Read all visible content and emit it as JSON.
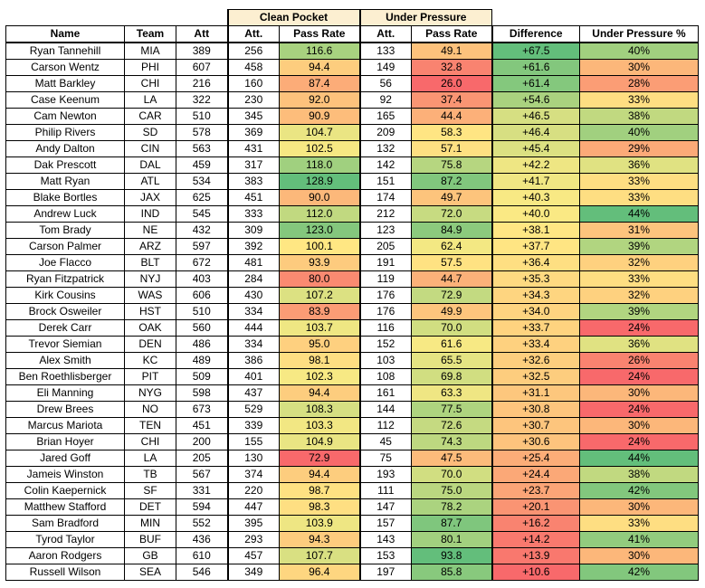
{
  "group_headers": {
    "clean_pocket": "Clean Pocket",
    "under_pressure": "Under Pressure"
  },
  "columns": [
    "Name",
    "Team",
    "Att",
    "Att.",
    "Pass Rate",
    "Att.",
    "Pass Rate",
    "Difference",
    "Under Pressure %"
  ],
  "rows": [
    [
      "Ryan Tannehill",
      "MIA",
      "389",
      "256",
      "116.6",
      "133",
      "49.1",
      "+67.5",
      "40%"
    ],
    [
      "Carson Wentz",
      "PHI",
      "607",
      "458",
      "94.4",
      "149",
      "32.8",
      "+61.6",
      "30%"
    ],
    [
      "Matt Barkley",
      "CHI",
      "216",
      "160",
      "87.4",
      "56",
      "26.0",
      "+61.4",
      "28%"
    ],
    [
      "Case Keenum",
      "LA",
      "322",
      "230",
      "92.0",
      "92",
      "37.4",
      "+54.6",
      "33%"
    ],
    [
      "Cam Newton",
      "CAR",
      "510",
      "345",
      "90.9",
      "165",
      "44.4",
      "+46.5",
      "38%"
    ],
    [
      "Philip Rivers",
      "SD",
      "578",
      "369",
      "104.7",
      "209",
      "58.3",
      "+46.4",
      "40%"
    ],
    [
      "Andy Dalton",
      "CIN",
      "563",
      "431",
      "102.5",
      "132",
      "57.1",
      "+45.4",
      "29%"
    ],
    [
      "Dak Prescott",
      "DAL",
      "459",
      "317",
      "118.0",
      "142",
      "75.8",
      "+42.2",
      "36%"
    ],
    [
      "Matt Ryan",
      "ATL",
      "534",
      "383",
      "128.9",
      "151",
      "87.2",
      "+41.7",
      "33%"
    ],
    [
      "Blake Bortles",
      "JAX",
      "625",
      "451",
      "90.0",
      "174",
      "49.7",
      "+40.3",
      "33%"
    ],
    [
      "Andrew Luck",
      "IND",
      "545",
      "333",
      "112.0",
      "212",
      "72.0",
      "+40.0",
      "44%"
    ],
    [
      "Tom Brady",
      "NE",
      "432",
      "309",
      "123.0",
      "123",
      "84.9",
      "+38.1",
      "31%"
    ],
    [
      "Carson Palmer",
      "ARZ",
      "597",
      "392",
      "100.1",
      "205",
      "62.4",
      "+37.7",
      "39%"
    ],
    [
      "Joe Flacco",
      "BLT",
      "672",
      "481",
      "93.9",
      "191",
      "57.5",
      "+36.4",
      "32%"
    ],
    [
      "Ryan Fitzpatrick",
      "NYJ",
      "403",
      "284",
      "80.0",
      "119",
      "44.7",
      "+35.3",
      "33%"
    ],
    [
      "Kirk Cousins",
      "WAS",
      "606",
      "430",
      "107.2",
      "176",
      "72.9",
      "+34.3",
      "32%"
    ],
    [
      "Brock Osweiler",
      "HST",
      "510",
      "334",
      "83.9",
      "176",
      "49.9",
      "+34.0",
      "39%"
    ],
    [
      "Derek Carr",
      "OAK",
      "560",
      "444",
      "103.7",
      "116",
      "70.0",
      "+33.7",
      "24%"
    ],
    [
      "Trevor Siemian",
      "DEN",
      "486",
      "334",
      "95.0",
      "152",
      "61.6",
      "+33.4",
      "36%"
    ],
    [
      "Alex Smith",
      "KC",
      "489",
      "386",
      "98.1",
      "103",
      "65.5",
      "+32.6",
      "26%"
    ],
    [
      "Ben Roethlisberger",
      "PIT",
      "509",
      "401",
      "102.3",
      "108",
      "69.8",
      "+32.5",
      "24%"
    ],
    [
      "Eli Manning",
      "NYG",
      "598",
      "437",
      "94.4",
      "161",
      "63.3",
      "+31.1",
      "30%"
    ],
    [
      "Drew Brees",
      "NO",
      "673",
      "529",
      "108.3",
      "144",
      "77.5",
      "+30.8",
      "24%"
    ],
    [
      "Marcus Mariota",
      "TEN",
      "451",
      "339",
      "103.3",
      "112",
      "72.6",
      "+30.7",
      "30%"
    ],
    [
      "Brian Hoyer",
      "CHI",
      "200",
      "155",
      "104.9",
      "45",
      "74.3",
      "+30.6",
      "24%"
    ],
    [
      "Jared Goff",
      "LA",
      "205",
      "130",
      "72.9",
      "75",
      "47.5",
      "+25.4",
      "44%"
    ],
    [
      "Jameis Winston",
      "TB",
      "567",
      "374",
      "94.4",
      "193",
      "70.0",
      "+24.4",
      "38%"
    ],
    [
      "Colin Kaepernick",
      "SF",
      "331",
      "220",
      "98.7",
      "111",
      "75.0",
      "+23.7",
      "42%"
    ],
    [
      "Matthew Stafford",
      "DET",
      "594",
      "447",
      "98.3",
      "147",
      "78.2",
      "+20.1",
      "30%"
    ],
    [
      "Sam Bradford",
      "MIN",
      "552",
      "395",
      "103.9",
      "157",
      "87.7",
      "+16.2",
      "33%"
    ],
    [
      "Tyrod Taylor",
      "BUF",
      "436",
      "293",
      "94.3",
      "143",
      "80.1",
      "+14.2",
      "41%"
    ],
    [
      "Aaron Rodgers",
      "GB",
      "610",
      "457",
      "107.7",
      "153",
      "93.8",
      "+13.9",
      "30%"
    ],
    [
      "Russell Wilson",
      "SEA",
      "546",
      "349",
      "96.4",
      "197",
      "85.8",
      "+10.6",
      "42%"
    ]
  ],
  "heat_colors": {
    "low": "#f8696b",
    "mid": "#ffeb84",
    "high": "#63be7b"
  }
}
